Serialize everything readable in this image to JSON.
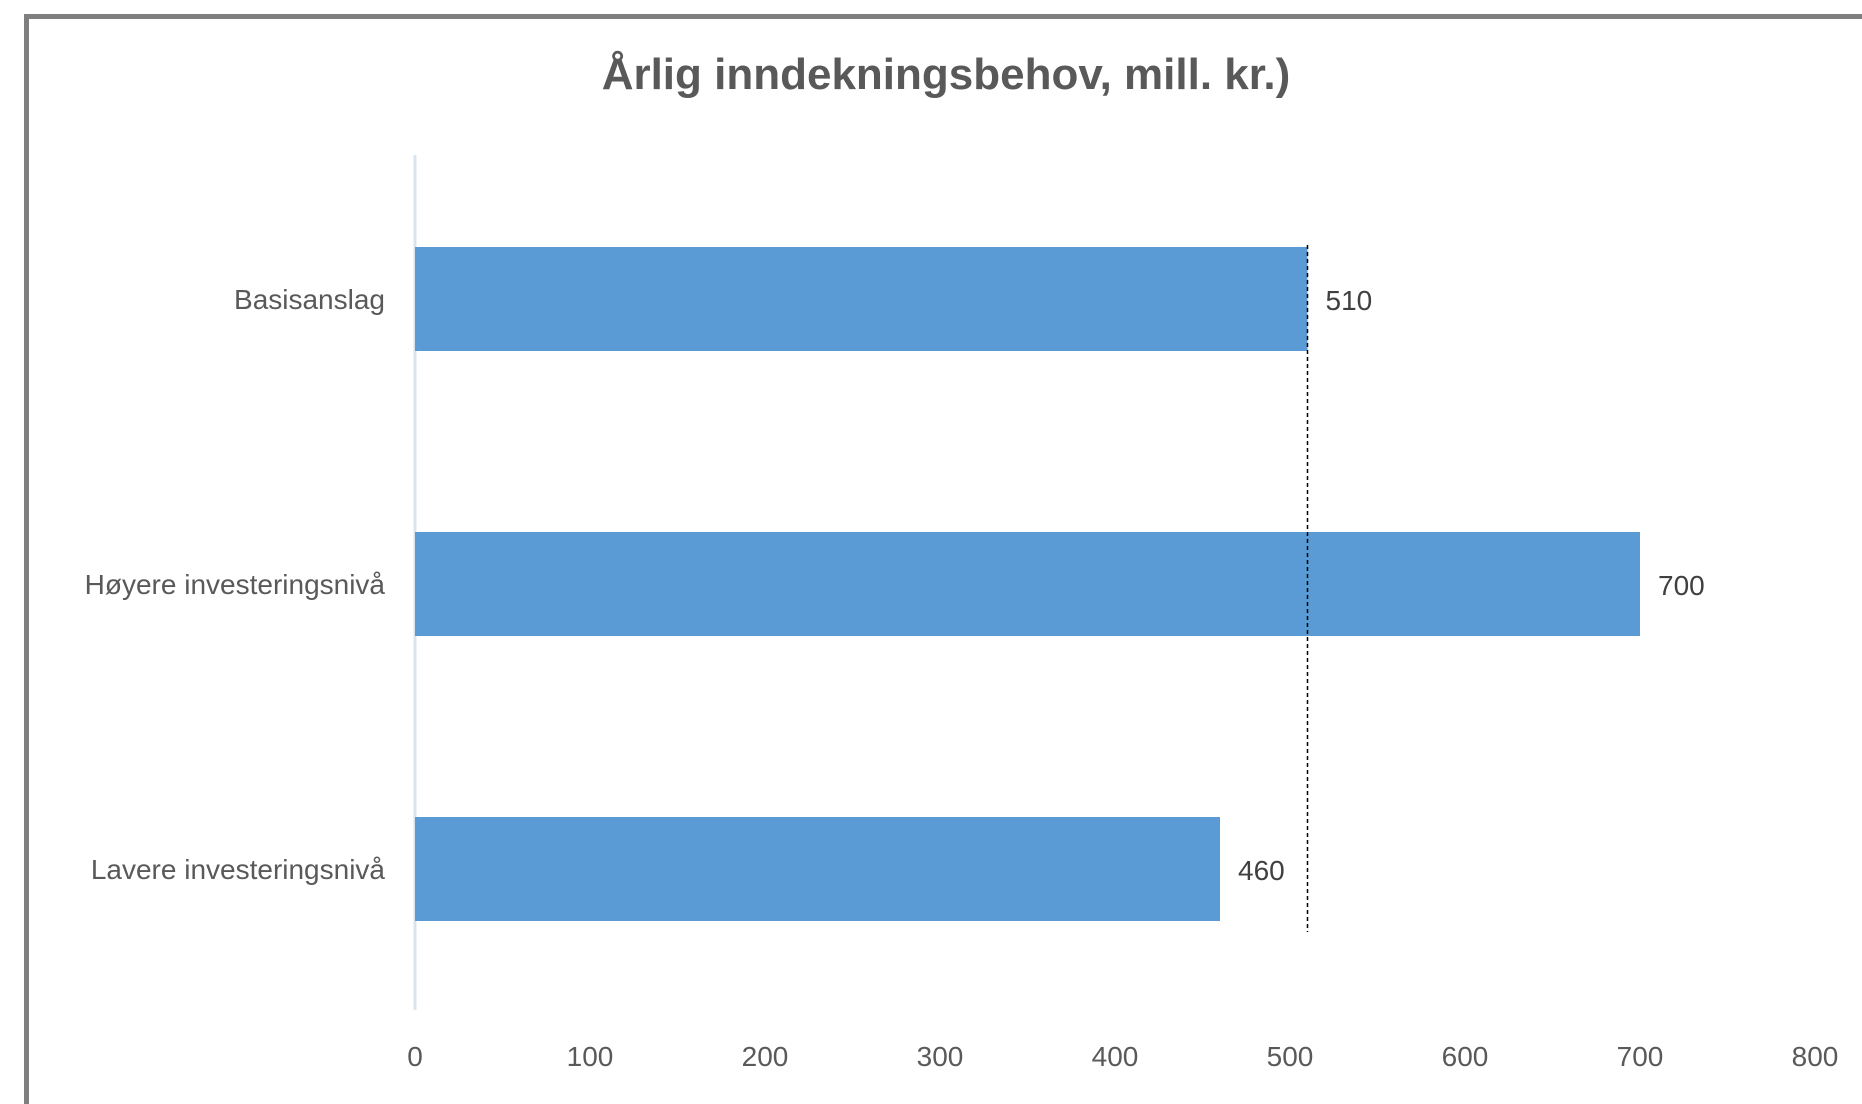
{
  "chart_data": {
    "type": "bar",
    "orientation": "horizontal",
    "title": "Årlig inndekningsbehov, mill. kr.)",
    "categories": [
      "Basisanslag",
      "Høyere investeringsnivå",
      "Lavere investeringsnivå"
    ],
    "values": [
      510,
      700,
      460
    ],
    "data_labels": [
      "510",
      "700",
      "460"
    ],
    "xlim": [
      0,
      800
    ],
    "x_ticks": [
      0,
      100,
      200,
      300,
      400,
      500,
      600,
      700,
      800
    ],
    "x_tick_labels": [
      "0",
      "100",
      "200",
      "300",
      "400",
      "500",
      "600",
      "700",
      "800"
    ],
    "reference_line": {
      "x": 510,
      "style": "dashed"
    },
    "grid": false,
    "legend": "none",
    "bar_color": "#5b9bd5"
  }
}
